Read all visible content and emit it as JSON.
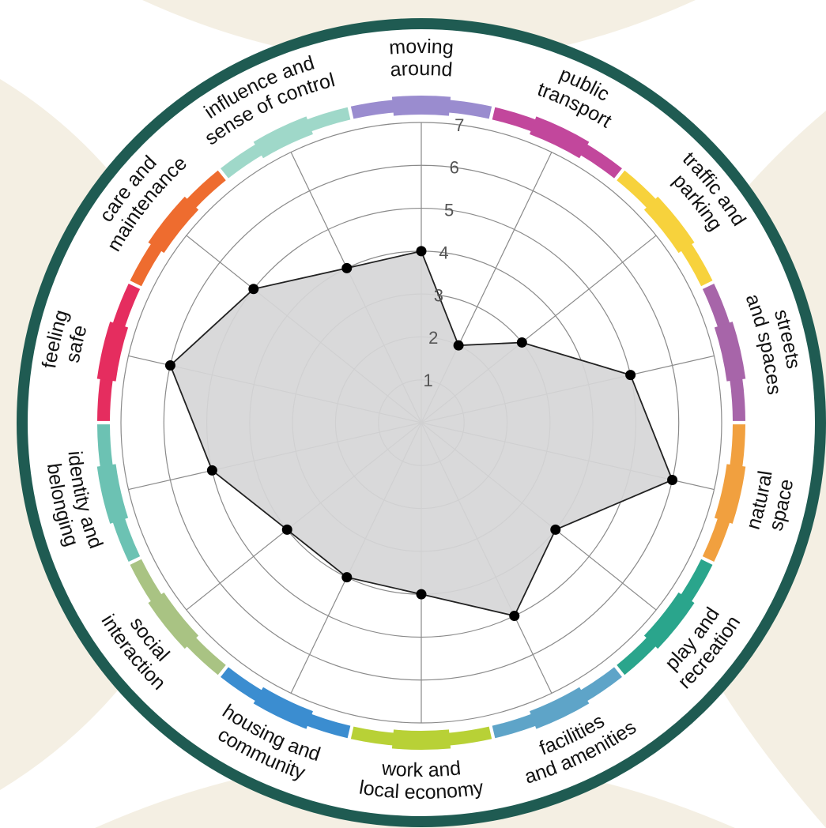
{
  "chart_data": {
    "type": "radar",
    "scale": {
      "min": 0,
      "max": 7,
      "ticks": [
        1,
        2,
        3,
        4,
        5,
        6,
        7
      ]
    },
    "categories": [
      {
        "lines": [
          "moving",
          "around"
        ],
        "value": 4,
        "color": "#9a8ccf"
      },
      {
        "lines": [
          "public",
          "transport"
        ],
        "value": 2,
        "color": "#c2479c"
      },
      {
        "lines": [
          "traffic and",
          "parking"
        ],
        "value": 3,
        "color": "#f7d23c"
      },
      {
        "lines": [
          "streets",
          "and spaces"
        ],
        "value": 5,
        "color": "#a765a9"
      },
      {
        "lines": [
          "natural",
          "space"
        ],
        "value": 6,
        "color": "#f1a03f"
      },
      {
        "lines": [
          "play and",
          "recreation"
        ],
        "value": 4,
        "color": "#2aa58c"
      },
      {
        "lines": [
          "facilities",
          "and amenities"
        ],
        "value": 5,
        "color": "#5ea4c8"
      },
      {
        "lines": [
          "work and",
          "local economy"
        ],
        "value": 4,
        "color": "#b8d136"
      },
      {
        "lines": [
          "housing and",
          "community"
        ],
        "value": 4,
        "color": "#3b8dd0"
      },
      {
        "lines": [
          "social",
          "interaction"
        ],
        "value": 4,
        "color": "#a9c383"
      },
      {
        "lines": [
          "identity and",
          "belonging"
        ],
        "value": 5,
        "color": "#6cc2b3"
      },
      {
        "lines": [
          "feeling",
          "safe"
        ],
        "value": 6,
        "color": "#e52d5f"
      },
      {
        "lines": [
          "care and",
          "maintenance"
        ],
        "value": 5,
        "color": "#ee6c2f"
      },
      {
        "lines": [
          "influence and",
          "sense of control"
        ],
        "value": 4,
        "color": "#9fd8c9"
      }
    ],
    "colors": {
      "frame": "#1f5b52",
      "fill": "#d6d6d7",
      "outline": "#222222",
      "grid": "#8a8a8a",
      "background_shape": "#f4efe3"
    }
  }
}
